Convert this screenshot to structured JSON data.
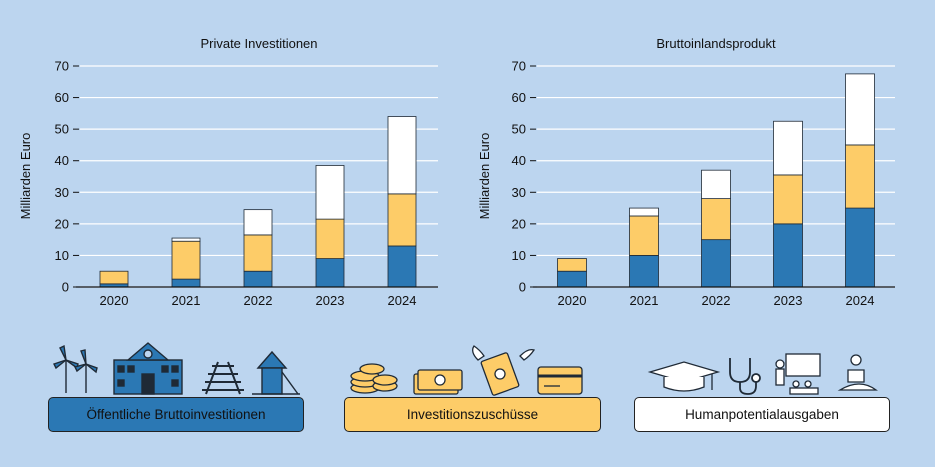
{
  "colors": {
    "background": "#bcd5ef",
    "oeffentlich": "#2b78b4",
    "zuschuesse": "#fdcc68",
    "human": "#ffffff"
  },
  "legend": {
    "items": [
      {
        "label": "Öffentliche Bruttoinvestitionen",
        "color": "#2b78b4",
        "icons": [
          "wind-turbine-icon",
          "school-building-icon",
          "railway-track-icon",
          "playground-icon"
        ]
      },
      {
        "label": "Investitionszuschüsse",
        "color": "#fdcc68",
        "icons": [
          "coins-icon",
          "banknotes-icon",
          "flying-money-icon",
          "credit-card-icon"
        ]
      },
      {
        "label": "Humanpotentialausgaben",
        "color": "#ffffff",
        "icons": [
          "graduation-cap-icon",
          "stethoscope-icon",
          "teacher-icon",
          "caregiver-icon"
        ]
      }
    ]
  },
  "chart_data": [
    {
      "type": "bar",
      "stacked": true,
      "title": "Private Investitionen",
      "ylabel": "Milliarden Euro",
      "xlabel": "",
      "categories": [
        "2020",
        "2021",
        "2022",
        "2023",
        "2024"
      ],
      "ylim": [
        0,
        70
      ],
      "yticks": [
        0,
        10,
        20,
        30,
        40,
        50,
        60,
        70
      ],
      "grid": true,
      "series": [
        {
          "name": "Öffentliche Bruttoinvestitionen",
          "color": "#2b78b4",
          "values": [
            1,
            2.5,
            5,
            9,
            13
          ]
        },
        {
          "name": "Investitionszuschüsse",
          "color": "#fdcc68",
          "values": [
            4,
            12,
            11.5,
            12.5,
            16.5
          ]
        },
        {
          "name": "Humanpotentialausgaben",
          "color": "#ffffff",
          "values": [
            0,
            1,
            8,
            17,
            24.5
          ]
        }
      ]
    },
    {
      "type": "bar",
      "stacked": true,
      "title": "Bruttoinlandsprodukt",
      "ylabel": "Milliarden Euro",
      "xlabel": "",
      "categories": [
        "2020",
        "2021",
        "2022",
        "2023",
        "2024"
      ],
      "ylim": [
        0,
        70
      ],
      "yticks": [
        0,
        10,
        20,
        30,
        40,
        50,
        60,
        70
      ],
      "grid": true,
      "series": [
        {
          "name": "Öffentliche Bruttoinvestitionen",
          "color": "#2b78b4",
          "values": [
            5,
            10,
            15,
            20,
            25
          ]
        },
        {
          "name": "Investitionszuschüsse",
          "color": "#fdcc68",
          "values": [
            4,
            12.5,
            13,
            15.5,
            20
          ]
        },
        {
          "name": "Humanpotentialausgaben",
          "color": "#ffffff",
          "values": [
            0,
            2.5,
            9,
            17,
            22.5
          ]
        }
      ]
    }
  ]
}
